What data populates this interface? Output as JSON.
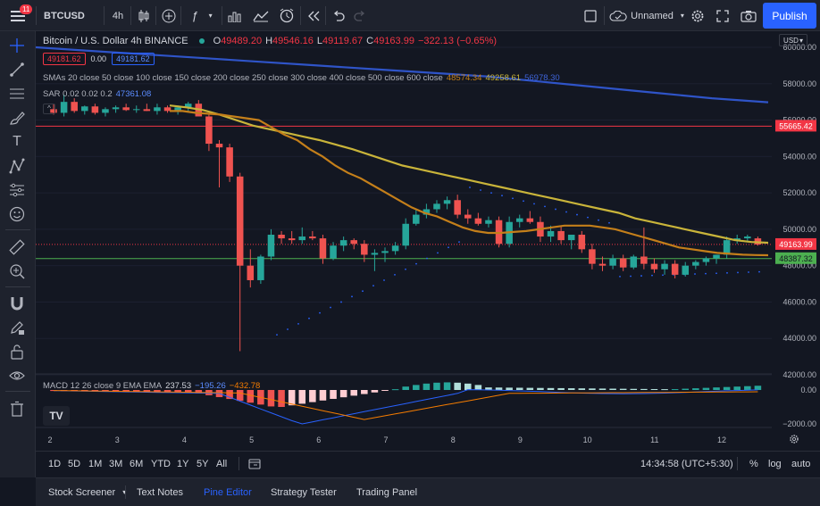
{
  "toolbar": {
    "notification_count": "11",
    "symbol": "BTCUSD",
    "interval": "4h",
    "layout_name": "Unnamed",
    "publish_label": "Publish"
  },
  "legend": {
    "title": "Bitcoin / U.S. Dollar  4h  BINANCE",
    "open_key": "O",
    "open": "49489.20",
    "high_key": "H",
    "high": "49546.16",
    "low_key": "L",
    "low": "49119.67",
    "close_key": "C",
    "close": "49163.99",
    "change": "−322.13 (−0.65%)",
    "bid": "49181.62",
    "spread": "0.00",
    "ask": "49181.62",
    "sma_label": "SMAs 20 close 50 close 100 close 150 close 200 close 250 close 300 close 400 close 500 close 600 close",
    "sma_values": [
      "48574.34",
      "49258.61",
      "56978.30"
    ],
    "sar_label": "SAR 0.02 0.02 0.2",
    "sar_value": "47361.08",
    "macd_label": "MACD 12 26 close 9 EMA EMA",
    "macd_values": [
      "237.53",
      "−195.26",
      "−432.78"
    ]
  },
  "price_axis": {
    "currency": "USD",
    "ticks": [
      "60000.00",
      "58000.00",
      "56000.00",
      "54000.00",
      "52000.00",
      "50000.00",
      "48000.00",
      "46000.00",
      "44000.00",
      "42000.00"
    ],
    "tags": {
      "upper": "55665.42",
      "current": "49163.99",
      "lower": "48387.32"
    },
    "macd_ticks": [
      "0.00",
      "−2000.00"
    ]
  },
  "time_axis": {
    "ticks": [
      "2",
      "3",
      "4",
      "5",
      "6",
      "7",
      "8",
      "9",
      "10",
      "11",
      "12"
    ]
  },
  "timeframes": [
    "1D",
    "5D",
    "1M",
    "3M",
    "6M",
    "YTD",
    "1Y",
    "5Y",
    "All"
  ],
  "status": {
    "clock": "14:34:58 (UTC+5:30)",
    "percent": "%",
    "log": "log",
    "auto": "auto"
  },
  "bottom_tabs": {
    "screener": "Stock Screener",
    "notes": "Text Notes",
    "pine": "Pine Editor",
    "tester": "Strategy Tester",
    "trading": "Trading Panel"
  },
  "colors": {
    "up": "#26a69a",
    "down": "#ef5350",
    "sma20": "#c47f1a",
    "sma50": "#c9b43a",
    "sma100": "#2f54c8",
    "sar": "#2962ff",
    "publish": "#2962ff"
  },
  "chart_data": {
    "type": "candlestick",
    "series_candles": [
      {
        "o": 56600,
        "h": 56900,
        "l": 56300,
        "c": 56400
      },
      {
        "o": 56400,
        "h": 57400,
        "l": 56200,
        "c": 57000
      },
      {
        "o": 57000,
        "h": 57200,
        "l": 56400,
        "c": 56500
      },
      {
        "o": 56500,
        "h": 56800,
        "l": 56300,
        "c": 56750
      },
      {
        "o": 56750,
        "h": 56900,
        "l": 56300,
        "c": 56400
      },
      {
        "o": 56400,
        "h": 56700,
        "l": 56200,
        "c": 56600
      },
      {
        "o": 56600,
        "h": 56800,
        "l": 56400,
        "c": 56700
      },
      {
        "o": 56700,
        "h": 56900,
        "l": 56500,
        "c": 56550
      },
      {
        "o": 56550,
        "h": 56800,
        "l": 56400,
        "c": 56600
      },
      {
        "o": 56600,
        "h": 56900,
        "l": 56500,
        "c": 56500
      },
      {
        "o": 56500,
        "h": 56900,
        "l": 56300,
        "c": 56700
      },
      {
        "o": 56700,
        "h": 56800,
        "l": 56400,
        "c": 56500
      },
      {
        "o": 56500,
        "h": 56800,
        "l": 56300,
        "c": 56700
      },
      {
        "o": 56700,
        "h": 57000,
        "l": 56500,
        "c": 56900
      },
      {
        "o": 56900,
        "h": 57100,
        "l": 56700,
        "c": 56200
      },
      {
        "o": 56200,
        "h": 56400,
        "l": 54300,
        "c": 54700
      },
      {
        "o": 54700,
        "h": 54900,
        "l": 52300,
        "c": 54500
      },
      {
        "o": 54500,
        "h": 54700,
        "l": 52600,
        "c": 52900
      },
      {
        "o": 52900,
        "h": 53100,
        "l": 43300,
        "c": 48000
      },
      {
        "o": 48000,
        "h": 48900,
        "l": 46800,
        "c": 47200
      },
      {
        "o": 47200,
        "h": 48600,
        "l": 47000,
        "c": 48500
      },
      {
        "o": 48500,
        "h": 50000,
        "l": 48300,
        "c": 49700
      },
      {
        "o": 49700,
        "h": 49900,
        "l": 49200,
        "c": 49500
      },
      {
        "o": 49500,
        "h": 49900,
        "l": 49200,
        "c": 49400
      },
      {
        "o": 49400,
        "h": 50100,
        "l": 49200,
        "c": 49600
      },
      {
        "o": 49600,
        "h": 49900,
        "l": 49400,
        "c": 49500
      },
      {
        "o": 49500,
        "h": 49700,
        "l": 48100,
        "c": 48400
      },
      {
        "o": 48400,
        "h": 49300,
        "l": 48300,
        "c": 49100
      },
      {
        "o": 49100,
        "h": 49600,
        "l": 48800,
        "c": 49400
      },
      {
        "o": 49400,
        "h": 49500,
        "l": 48900,
        "c": 49200
      },
      {
        "o": 49200,
        "h": 49400,
        "l": 48200,
        "c": 48600
      },
      {
        "o": 48600,
        "h": 48900,
        "l": 47700,
        "c": 48700
      },
      {
        "o": 48700,
        "h": 49000,
        "l": 48200,
        "c": 48800
      },
      {
        "o": 48800,
        "h": 49300,
        "l": 48600,
        "c": 49100
      },
      {
        "o": 49100,
        "h": 50600,
        "l": 48900,
        "c": 50300
      },
      {
        "o": 50300,
        "h": 51100,
        "l": 50200,
        "c": 50800
      },
      {
        "o": 50800,
        "h": 51400,
        "l": 50600,
        "c": 51100
      },
      {
        "o": 51100,
        "h": 51600,
        "l": 50900,
        "c": 51400
      },
      {
        "o": 51400,
        "h": 51800,
        "l": 51100,
        "c": 51600
      },
      {
        "o": 51600,
        "h": 51900,
        "l": 50600,
        "c": 50800
      },
      {
        "o": 50800,
        "h": 51100,
        "l": 50300,
        "c": 50600
      },
      {
        "o": 50600,
        "h": 50900,
        "l": 50200,
        "c": 50300
      },
      {
        "o": 50300,
        "h": 50700,
        "l": 50100,
        "c": 50500
      },
      {
        "o": 50500,
        "h": 50700,
        "l": 49000,
        "c": 49200
      },
      {
        "o": 49200,
        "h": 50700,
        "l": 49000,
        "c": 50400
      },
      {
        "o": 50400,
        "h": 50800,
        "l": 50100,
        "c": 50600
      },
      {
        "o": 50600,
        "h": 51000,
        "l": 50300,
        "c": 50400
      },
      {
        "o": 50400,
        "h": 50700,
        "l": 49300,
        "c": 49600
      },
      {
        "o": 49600,
        "h": 50200,
        "l": 49300,
        "c": 49900
      },
      {
        "o": 49900,
        "h": 50200,
        "l": 49200,
        "c": 49400
      },
      {
        "o": 49400,
        "h": 49700,
        "l": 48900,
        "c": 49700
      },
      {
        "o": 49700,
        "h": 49900,
        "l": 48700,
        "c": 48900
      },
      {
        "o": 48900,
        "h": 49200,
        "l": 47800,
        "c": 48100
      },
      {
        "o": 48100,
        "h": 48500,
        "l": 47700,
        "c": 48000
      },
      {
        "o": 48000,
        "h": 48600,
        "l": 47800,
        "c": 48400
      },
      {
        "o": 48400,
        "h": 48600,
        "l": 47700,
        "c": 47900
      },
      {
        "o": 47900,
        "h": 48600,
        "l": 47800,
        "c": 48500
      },
      {
        "o": 48500,
        "h": 50100,
        "l": 47800,
        "c": 48100
      },
      {
        "o": 48100,
        "h": 48400,
        "l": 47600,
        "c": 47800
      },
      {
        "o": 47800,
        "h": 48300,
        "l": 47500,
        "c": 48100
      },
      {
        "o": 48100,
        "h": 48300,
        "l": 47300,
        "c": 47500
      },
      {
        "o": 47500,
        "h": 48200,
        "l": 47400,
        "c": 48000
      },
      {
        "o": 48000,
        "h": 48300,
        "l": 47800,
        "c": 48200
      },
      {
        "o": 48200,
        "h": 48500,
        "l": 48000,
        "c": 48400
      },
      {
        "o": 48400,
        "h": 48600,
        "l": 48100,
        "c": 48600
      },
      {
        "o": 48600,
        "h": 49600,
        "l": 48400,
        "c": 49400
      },
      {
        "o": 49400,
        "h": 49700,
        "l": 49200,
        "c": 49500
      },
      {
        "o": 49500,
        "h": 49700,
        "l": 49300,
        "c": 49600
      },
      {
        "o": 49500,
        "h": 49600,
        "l": 49100,
        "c": 49164
      }
    ],
    "sma20": [
      56500,
      56500,
      56400,
      56350,
      56300,
      56200,
      56100,
      56000,
      55600,
      55200,
      54900,
      54400,
      54000,
      53500,
      53100,
      52800,
      52400,
      52000,
      51600,
      51200,
      50900,
      50700,
      50400,
      50100,
      49900,
      49800,
      49800,
      49850,
      49900,
      50000,
      50100,
      50200,
      50200,
      50200,
      50100,
      50000,
      49800,
      49600,
      49400,
      49200,
      49000,
      48900,
      48800,
      48700,
      48650,
      48600,
      48580,
      48574
    ],
    "sma50": [
      56800,
      56700,
      56550,
      56300,
      56000,
      55700,
      55500,
      55300,
      55100,
      54900,
      54650,
      54400,
      54100,
      53800,
      53500,
      53300,
      53100,
      52900,
      52700,
      52500,
      52300,
      52100,
      51900,
      51700,
      51500,
      51300,
      51100,
      50900,
      50600,
      50400,
      50200,
      50000,
      49800,
      49600,
      49400,
      49300,
      49259
    ],
    "sma100": [
      60000,
      59800,
      59600,
      59400,
      59200,
      59000,
      58800,
      58600,
      58400,
      58100,
      57800,
      57500,
      57200,
      56978
    ],
    "title": "Bitcoin / U.S. Dollar  4h  BINANCE",
    "y_range": [
      42000,
      61000
    ]
  }
}
